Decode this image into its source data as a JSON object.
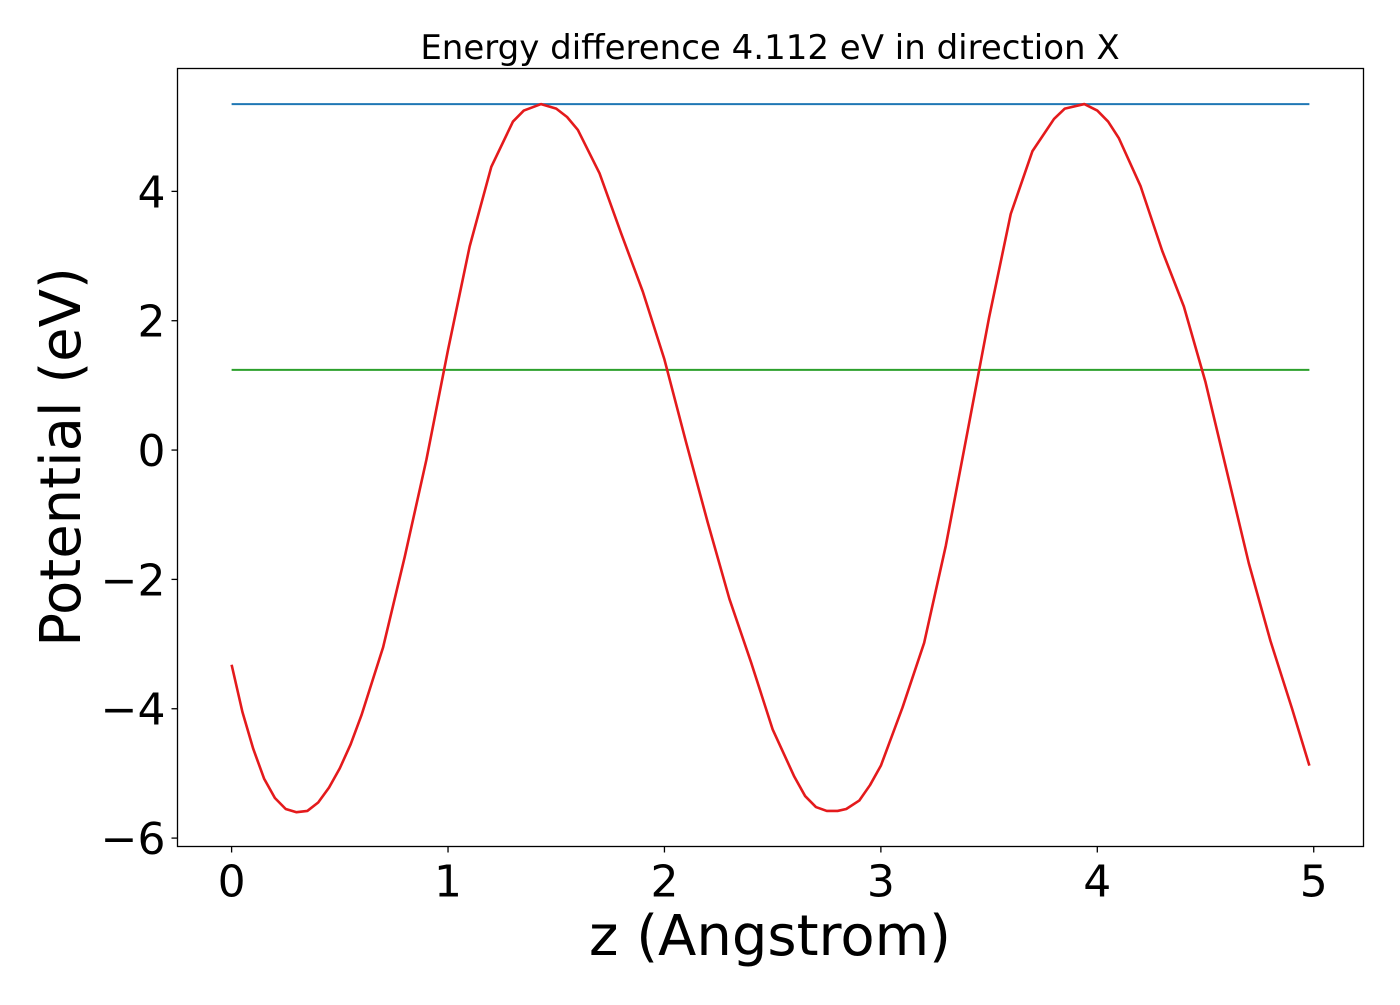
{
  "chart_data": {
    "type": "line",
    "title": "Energy difference 4.112 eV in direction X",
    "xlabel": "z (Angstrom)",
    "ylabel": "Potential (eV)",
    "xlim": [
      -0.25,
      5.23
    ],
    "ylim": [
      -6.13,
      5.9
    ],
    "grid": false,
    "legend": "none",
    "x_ticks": [
      0,
      1,
      2,
      3,
      4,
      5
    ],
    "x_tick_labels": [
      "0",
      "1",
      "2",
      "3",
      "4",
      "5"
    ],
    "y_ticks": [
      -6,
      -4,
      -2,
      0,
      2,
      4
    ],
    "y_tick_labels": [
      "−6",
      "−4",
      "−2",
      "0",
      "2",
      "4"
    ],
    "series": [
      {
        "color": "#1f77b4",
        "x": [
          0,
          4.98
        ],
        "y": [
          5.35,
          5.35
        ]
      },
      {
        "color": "#2ca02c",
        "x": [
          0,
          4.98
        ],
        "y": [
          1.24,
          1.24
        ]
      },
      {
        "color": "#e41a1c",
        "x": [
          0,
          0.05,
          0.1,
          0.15,
          0.2,
          0.25,
          0.3,
          0.35,
          0.4,
          0.45,
          0.5,
          0.55,
          0.6,
          0.7,
          0.8,
          0.9,
          1.0,
          1.1,
          1.2,
          1.3,
          1.35,
          1.43,
          1.5,
          1.55,
          1.6,
          1.7,
          1.8,
          1.9,
          2.0,
          2.1,
          2.2,
          2.3,
          2.4,
          2.5,
          2.6,
          2.65,
          2.7,
          2.75,
          2.8,
          2.84,
          2.9,
          2.95,
          3.0,
          3.1,
          3.2,
          3.3,
          3.4,
          3.5,
          3.6,
          3.7,
          3.8,
          3.85,
          3.94,
          4.0,
          4.05,
          4.1,
          4.2,
          4.3,
          4.4,
          4.5,
          4.6,
          4.7,
          4.8,
          4.9,
          4.98
        ],
        "y": [
          -3.32,
          -4.05,
          -4.62,
          -5.08,
          -5.38,
          -5.55,
          -5.6,
          -5.58,
          -5.45,
          -5.22,
          -4.92,
          -4.55,
          -4.1,
          -3.05,
          -1.65,
          -0.15,
          1.55,
          3.15,
          4.38,
          5.08,
          5.25,
          5.35,
          5.28,
          5.15,
          4.95,
          4.28,
          3.35,
          2.45,
          1.4,
          0.12,
          -1.12,
          -2.3,
          -3.28,
          -4.32,
          -5.05,
          -5.35,
          -5.52,
          -5.58,
          -5.58,
          -5.55,
          -5.42,
          -5.18,
          -4.88,
          -3.98,
          -2.98,
          -1.48,
          0.28,
          2.05,
          3.65,
          4.62,
          5.12,
          5.28,
          5.35,
          5.25,
          5.08,
          4.82,
          4.08,
          3.08,
          2.22,
          1.05,
          -0.35,
          -1.75,
          -2.95,
          -4.0,
          -4.88
        ]
      }
    ]
  }
}
